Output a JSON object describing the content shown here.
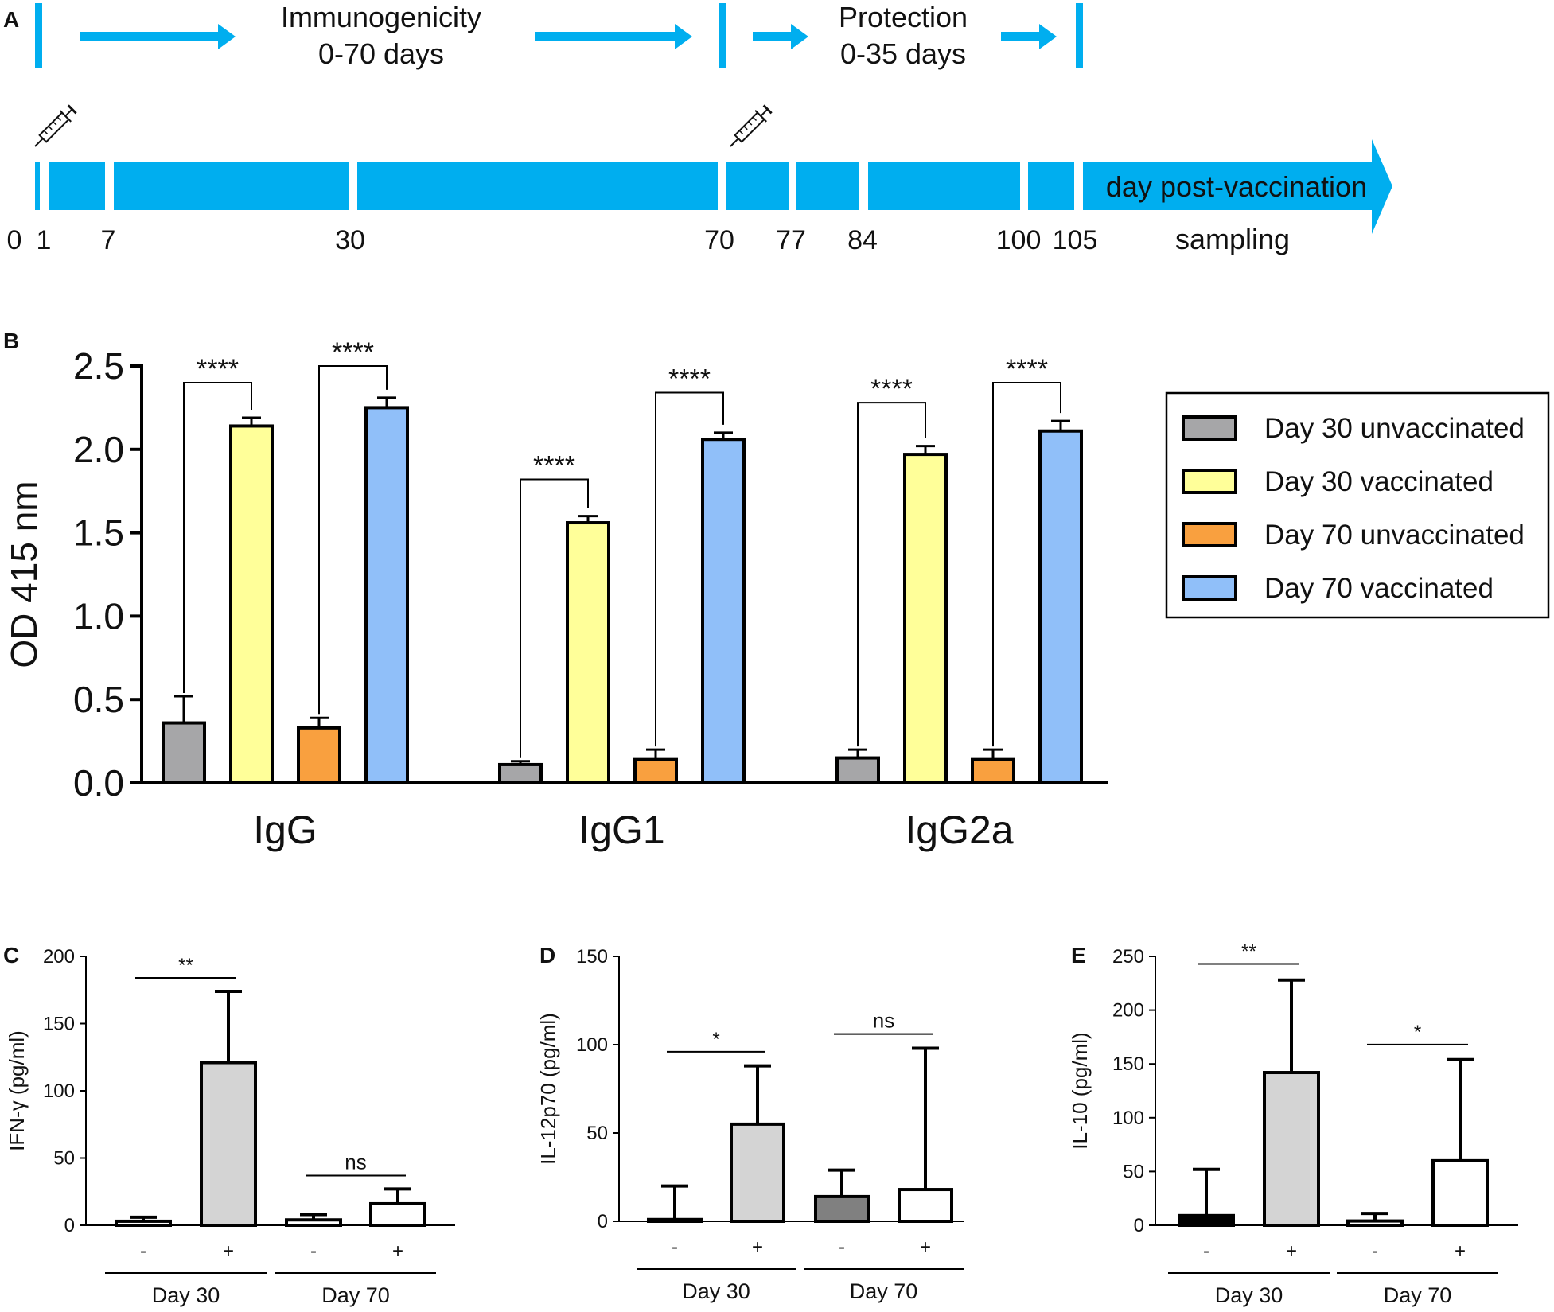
{
  "colors": {
    "timeline": "#00AEEF",
    "gray": "#A6A6A8",
    "yellow": "#FFFF99",
    "orange": "#F9A03F",
    "blue": "#90BFF9",
    "light_gray": "#D4D4D4",
    "dark_gray": "#808080",
    "black": "#000000",
    "white": "#FFFFFF"
  },
  "panel_a": {
    "label": "A",
    "immuno_line1": "Immunogenicity",
    "immuno_line2": "0-70 days",
    "protect_line1": "Protection",
    "protect_line2": "0-35 days",
    "arrow_label": "day post-vaccination",
    "sampling_label": "sampling",
    "days": [
      "0",
      "1",
      "7",
      "30",
      "70",
      "77",
      "84",
      "100",
      "105"
    ],
    "icons": [
      "syringe-icon",
      "syringe-icon"
    ]
  },
  "chart_data": [
    {
      "panel": "B",
      "type": "bar",
      "ylabel": "OD 415 nm",
      "ylim": [
        0,
        2.5
      ],
      "yticks": [
        "0.0",
        "0.5",
        "1.0",
        "1.5",
        "2.0",
        "2.5"
      ],
      "categories": [
        "IgG",
        "IgG1",
        "IgG2a"
      ],
      "series": [
        {
          "name": "Day 30 unvaccinated",
          "color": "#A6A6A8",
          "values": [
            0.36,
            0.11,
            0.15
          ],
          "errors": [
            0.16,
            0.02,
            0.05
          ]
        },
        {
          "name": "Day 30 vaccinated",
          "color": "#FFFF99",
          "values": [
            2.14,
            1.56,
            1.97
          ],
          "errors": [
            0.05,
            0.04,
            0.05
          ]
        },
        {
          "name": "Day 70 unvaccinated",
          "color": "#F9A03F",
          "values": [
            0.33,
            0.14,
            0.14
          ],
          "errors": [
            0.06,
            0.06,
            0.06
          ]
        },
        {
          "name": "Day 70 vaccinated",
          "color": "#90BFF9",
          "values": [
            2.25,
            2.06,
            2.11
          ],
          "errors": [
            0.06,
            0.04,
            0.06
          ]
        }
      ],
      "significance": [
        {
          "category": "IgG",
          "from_series": 0,
          "to_series": 1,
          "label": "****",
          "level": 2.4
        },
        {
          "category": "IgG",
          "from_series": 2,
          "to_series": 3,
          "label": "****",
          "level": 2.5
        },
        {
          "category": "IgG1",
          "from_series": 0,
          "to_series": 1,
          "label": "****",
          "level": 1.82
        },
        {
          "category": "IgG1",
          "from_series": 2,
          "to_series": 3,
          "label": "****",
          "level": 2.34
        },
        {
          "category": "IgG2a",
          "from_series": 0,
          "to_series": 1,
          "label": "****",
          "level": 2.28
        },
        {
          "category": "IgG2a",
          "from_series": 2,
          "to_series": 3,
          "label": "****",
          "level": 2.4
        }
      ],
      "legend": [
        "Day 30 unvaccinated",
        "Day 30 vaccinated",
        "Day 70 unvaccinated",
        "Day 70 vaccinated"
      ],
      "legend_position": "right"
    },
    {
      "panel": "C",
      "type": "bar",
      "ylabel": "IFN-γ (pg/ml)",
      "ylim": [
        0,
        200
      ],
      "yticks": [
        "0",
        "50",
        "100",
        "150",
        "200"
      ],
      "bars": [
        {
          "group": "Day 30",
          "label": "-",
          "value": 3,
          "error": 3,
          "color": "#FFFFFF"
        },
        {
          "group": "Day 30",
          "label": "+",
          "value": 121,
          "error": 53,
          "color": "#D4D4D4"
        },
        {
          "group": "Day 70",
          "label": "-",
          "value": 4,
          "error": 4,
          "color": "#FFFFFF"
        },
        {
          "group": "Day 70",
          "label": "+",
          "value": 16,
          "error": 11,
          "color": "#FFFFFF"
        }
      ],
      "groups": [
        "Day 30",
        "Day 70"
      ],
      "significance": [
        {
          "from_bar": 0,
          "to_bar": 1,
          "label": "**",
          "level": 184
        },
        {
          "from_bar": 2,
          "to_bar": 3,
          "label": "ns",
          "level": 37
        }
      ]
    },
    {
      "panel": "D",
      "type": "bar",
      "ylabel": "IL-12p70 (pg/ml)",
      "ylim": [
        0,
        150
      ],
      "yticks": [
        "0",
        "50",
        "100",
        "150"
      ],
      "bars": [
        {
          "group": "Day 30",
          "label": "-",
          "value": 1,
          "error": 19,
          "color": "#FFFFFF"
        },
        {
          "group": "Day 30",
          "label": "+",
          "value": 55,
          "error": 33,
          "color": "#D4D4D4"
        },
        {
          "group": "Day 70",
          "label": "-",
          "value": 14,
          "error": 15,
          "color": "#808080"
        },
        {
          "group": "Day 70",
          "label": "+",
          "value": 18,
          "error": 80,
          "color": "#FFFFFF"
        }
      ],
      "groups": [
        "Day 30",
        "Day 70"
      ],
      "significance": [
        {
          "from_bar": 0,
          "to_bar": 1,
          "label": "*",
          "level": 96
        },
        {
          "from_bar": 2,
          "to_bar": 3,
          "label": "ns",
          "level": 106
        }
      ]
    },
    {
      "panel": "E",
      "type": "bar",
      "ylabel": "IL-10 (pg/ml)",
      "ylim": [
        0,
        250
      ],
      "yticks": [
        "0",
        "50",
        "100",
        "150",
        "200",
        "250"
      ],
      "bars": [
        {
          "group": "Day 30",
          "label": "-",
          "value": 9,
          "error": 43,
          "color": "#000000"
        },
        {
          "group": "Day 30",
          "label": "+",
          "value": 142,
          "error": 86,
          "color": "#D4D4D4"
        },
        {
          "group": "Day 70",
          "label": "-",
          "value": 4,
          "error": 7,
          "color": "#FFFFFF"
        },
        {
          "group": "Day 70",
          "label": "+",
          "value": 60,
          "error": 94,
          "color": "#FFFFFF"
        }
      ],
      "groups": [
        "Day 30",
        "Day 70"
      ],
      "significance": [
        {
          "from_bar": 0,
          "to_bar": 1,
          "label": "**",
          "level": 243
        },
        {
          "from_bar": 2,
          "to_bar": 3,
          "label": "*",
          "level": 168
        }
      ]
    }
  ]
}
